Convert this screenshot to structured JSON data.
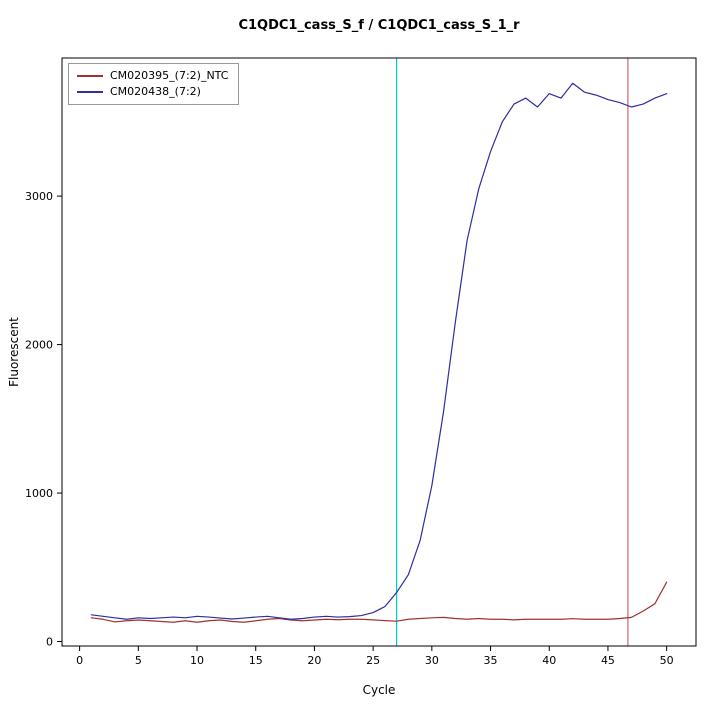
{
  "chart_data": {
    "type": "line",
    "title": "C1QDC1_cass_S_f / C1QDC1_cass_S_1_r",
    "xlabel": "Cycle",
    "ylabel": "Fluorescent",
    "xlim": [
      -1.5,
      52.5
    ],
    "ylim": [
      -30,
      3930
    ],
    "x_ticks": [
      0,
      5,
      10,
      15,
      20,
      25,
      30,
      35,
      40,
      45,
      50
    ],
    "y_ticks": [
      0,
      1000,
      2000,
      3000
    ],
    "grid": false,
    "legend_position": "top-left",
    "x": [
      1,
      2,
      3,
      4,
      5,
      6,
      7,
      8,
      9,
      10,
      11,
      12,
      13,
      14,
      15,
      16,
      17,
      18,
      19,
      20,
      21,
      22,
      23,
      24,
      25,
      26,
      27,
      28,
      29,
      30,
      31,
      32,
      33,
      34,
      35,
      36,
      37,
      38,
      39,
      40,
      41,
      42,
      43,
      44,
      45,
      46,
      47,
      48,
      49,
      50
    ],
    "series": [
      {
        "name": "CM020395_(7:2)_NTC",
        "color": "#a03232",
        "values": [
          160,
          150,
          132,
          140,
          145,
          140,
          135,
          130,
          140,
          130,
          140,
          145,
          135,
          130,
          140,
          150,
          155,
          145,
          140,
          145,
          150,
          147,
          150,
          150,
          146,
          141,
          137,
          150,
          155,
          160,
          163,
          155,
          150,
          155,
          150,
          150,
          146,
          150,
          150,
          150,
          150,
          154,
          150,
          150,
          150,
          155,
          163,
          205,
          255,
          400
        ]
      },
      {
        "name": "CM020438_(7:2)",
        "color": "#2e2e9e",
        "values": [
          180,
          170,
          160,
          150,
          160,
          155,
          160,
          165,
          160,
          170,
          165,
          158,
          152,
          158,
          165,
          170,
          160,
          150,
          155,
          165,
          170,
          165,
          168,
          175,
          195,
          235,
          330,
          450,
          680,
          1050,
          1550,
          2150,
          2700,
          3050,
          3300,
          3500,
          3620,
          3660,
          3600,
          3690,
          3660,
          3760,
          3700,
          3680,
          3650,
          3630,
          3600,
          3620,
          3660,
          3690
        ]
      }
    ],
    "vlines": [
      {
        "x": 27,
        "color": "#00cccc"
      },
      {
        "x": 46.7,
        "color": "#cd6666"
      }
    ],
    "axis_color": "#000000"
  }
}
